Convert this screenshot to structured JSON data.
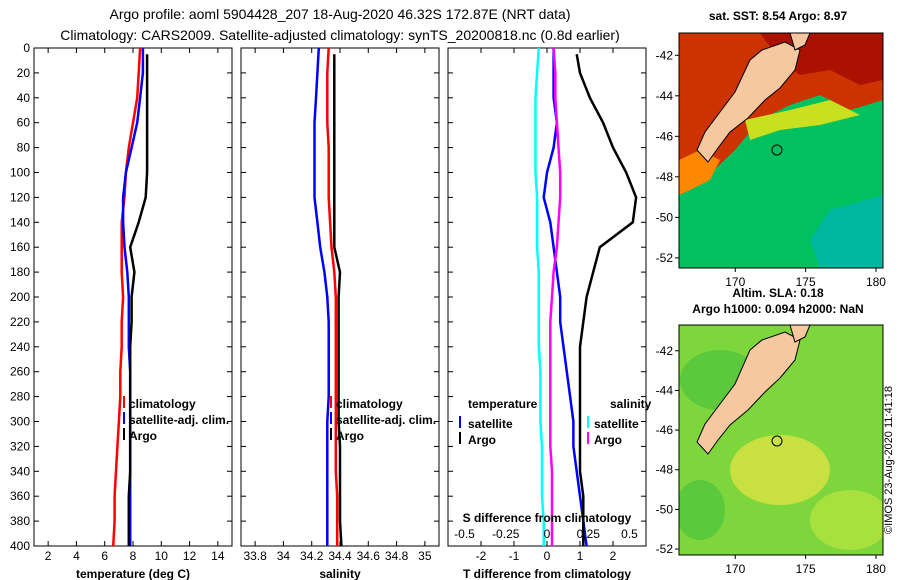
{
  "header": {
    "line1": "Argo profile: aoml 5904428_207 18-Aug-2020 46.32S 172.87E (NRT data)",
    "line2": "Climatology: CARS2009. Satellite-adjusted climatology: synTS_20200818.nc (0.8d earlier)"
  },
  "map_top": {
    "title": "sat. SST: 8.54 Argo: 8.97",
    "lon_ticks": [
      "170",
      "175",
      "180"
    ],
    "lat_ticks": [
      "-42",
      "-44",
      "-46",
      "-48",
      "-50",
      "-52"
    ],
    "profile_marker": "profile-location-circle"
  },
  "map_bottom": {
    "title1": "Altim. SLA: 0.18",
    "title2": "Argo h1000: 0.094 h2000: NaN",
    "lon_ticks": [
      "170",
      "175",
      "180"
    ],
    "lat_ticks": [
      "-42",
      "-44",
      "-46",
      "-48",
      "-50",
      "-52"
    ]
  },
  "watermark": "©IMOS 23-Aug-2020 11:41:18",
  "colors": {
    "climatology": "#ff0000",
    "satellite": "#0000ff",
    "argo": "#000000",
    "sat_salinity": "#00ffff",
    "salinity_diff": "#ff00ff"
  },
  "chart_data": [
    {
      "type": "line",
      "xlabel": "temperature (deg C)",
      "ylabel": "",
      "xlim": [
        1,
        15
      ],
      "ylim": [
        400,
        0
      ],
      "xticks": [
        "2",
        "4",
        "6",
        "8",
        "10",
        "12",
        "14"
      ],
      "yticks": [
        "0",
        "20",
        "40",
        "60",
        "80",
        "100",
        "120",
        "140",
        "160",
        "180",
        "200",
        "220",
        "240",
        "260",
        "280",
        "300",
        "320",
        "340",
        "360",
        "380",
        "400"
      ],
      "legend": [
        "climatology",
        "satellite-adj. clim.",
        "Argo"
      ],
      "series": [
        {
          "name": "climatology",
          "color": "#ff0000",
          "x": [
            8.5,
            8.4,
            8.3,
            8.0,
            7.7,
            7.5,
            7.4,
            7.2,
            7.2,
            7.2,
            7.3,
            7.2,
            7.2,
            7.1,
            7.1,
            7.0,
            6.9,
            6.8,
            6.7,
            6.7,
            6.6
          ],
          "y": [
            0,
            20,
            40,
            60,
            80,
            100,
            120,
            140,
            160,
            180,
            200,
            220,
            240,
            260,
            280,
            300,
            320,
            340,
            360,
            380,
            400
          ]
        },
        {
          "name": "satellite-adj. clim.",
          "color": "#0000ff",
          "x": [
            8.7,
            8.7,
            8.5,
            8.3,
            7.9,
            7.5,
            7.3,
            7.3,
            7.4,
            7.6,
            7.7,
            7.7,
            7.7,
            7.8,
            7.8,
            7.8,
            7.8,
            7.8,
            7.8,
            7.8,
            7.8
          ],
          "y": [
            0,
            20,
            40,
            60,
            80,
            100,
            120,
            140,
            160,
            180,
            200,
            220,
            240,
            260,
            280,
            300,
            320,
            340,
            360,
            380,
            400
          ]
        },
        {
          "name": "Argo",
          "color": "#000000",
          "x": [
            9.0,
            9.0,
            9.0,
            9.0,
            9.0,
            9.0,
            8.9,
            8.4,
            7.8,
            8.1,
            7.9,
            7.9,
            7.8,
            7.8,
            7.8,
            7.8,
            7.8,
            7.8,
            7.7,
            7.7,
            7.7
          ],
          "y": [
            5,
            20,
            40,
            60,
            80,
            100,
            120,
            140,
            160,
            180,
            200,
            220,
            240,
            260,
            280,
            300,
            320,
            340,
            360,
            380,
            400
          ]
        }
      ]
    },
    {
      "type": "line",
      "xlabel": "salinity",
      "ylabel": "",
      "xlim": [
        33.7,
        35.1
      ],
      "ylim": [
        400,
        0
      ],
      "xticks": [
        "33.8",
        "34",
        "34.2",
        "34.4",
        "34.6",
        "34.8",
        "35"
      ],
      "legend": [
        "climatology",
        "satellite-adj. clim.",
        "Argo"
      ],
      "series": [
        {
          "name": "climatology",
          "color": "#ff0000",
          "x": [
            34.32,
            34.31,
            34.31,
            34.31,
            34.32,
            34.32,
            34.32,
            34.33,
            34.34,
            34.36,
            34.37,
            34.37,
            34.37,
            34.37,
            34.37,
            34.37,
            34.37,
            34.37,
            34.38,
            34.38,
            34.38
          ],
          "y": [
            0,
            20,
            40,
            60,
            80,
            100,
            120,
            140,
            160,
            180,
            200,
            220,
            240,
            260,
            280,
            300,
            320,
            340,
            360,
            380,
            400
          ]
        },
        {
          "name": "satellite-adj. clim.",
          "color": "#0000ff",
          "x": [
            34.25,
            34.24,
            34.23,
            34.22,
            34.22,
            34.22,
            34.22,
            34.24,
            34.26,
            34.29,
            34.31,
            34.32,
            34.32,
            34.32,
            34.32,
            34.31,
            34.31,
            34.31,
            34.31,
            34.31,
            34.31
          ],
          "y": [
            0,
            20,
            40,
            60,
            80,
            100,
            120,
            140,
            160,
            180,
            200,
            220,
            240,
            260,
            280,
            300,
            320,
            340,
            360,
            380,
            400
          ]
        },
        {
          "name": "Argo",
          "color": "#000000",
          "x": [
            34.36,
            34.36,
            34.36,
            34.36,
            34.36,
            34.36,
            34.36,
            34.36,
            34.36,
            34.4,
            34.39,
            34.39,
            34.39,
            34.39,
            34.39,
            34.39,
            34.4,
            34.4,
            34.4,
            34.4,
            34.41
          ],
          "y": [
            5,
            20,
            40,
            60,
            80,
            100,
            120,
            140,
            160,
            180,
            200,
            220,
            240,
            260,
            280,
            300,
            320,
            340,
            360,
            380,
            400
          ]
        }
      ]
    },
    {
      "type": "line",
      "xlabel": "T difference from climatology",
      "xlim": [
        -3,
        3
      ],
      "ylim": [
        400,
        0
      ],
      "xticks": [
        "-2",
        "-1",
        "0",
        "1",
        "2"
      ],
      "top_axis_label": "S difference from climatology",
      "top_axis_ticks": [
        "-0.5",
        "-0.25",
        "0",
        "0.25",
        "0.5"
      ],
      "legend_left_title": "temperature",
      "legend_right_title": "salinity",
      "legend_left": [
        "satellite",
        "Argo"
      ],
      "legend_right": [
        "satellite",
        "Argo"
      ],
      "series": [
        {
          "name": "temperature satellite",
          "color": "#0000ff",
          "x": [
            0.2,
            0.2,
            0.2,
            0.3,
            0.2,
            0.0,
            -0.1,
            0.1,
            0.2,
            0.3,
            0.4,
            0.4,
            0.5,
            0.6,
            0.7,
            0.8,
            0.8,
            0.9,
            1.0,
            1.1,
            1.2
          ],
          "y": [
            0,
            20,
            40,
            60,
            80,
            100,
            120,
            140,
            160,
            180,
            200,
            220,
            240,
            260,
            280,
            300,
            320,
            340,
            360,
            380,
            400
          ]
        },
        {
          "name": "temperature Argo",
          "color": "#000000",
          "x": [
            0.9,
            1.0,
            1.3,
            1.7,
            2.0,
            2.4,
            2.7,
            2.6,
            1.6,
            1.4,
            1.2,
            1.1,
            1.0,
            1.0,
            1.0,
            1.0,
            1.0,
            1.0,
            1.1,
            1.1,
            1.1
          ],
          "y": [
            5,
            20,
            40,
            60,
            80,
            100,
            120,
            140,
            160,
            180,
            200,
            220,
            240,
            260,
            280,
            300,
            320,
            340,
            360,
            380,
            400
          ]
        },
        {
          "name": "salinity satellite",
          "color": "#00ffff",
          "x": [
            -0.05,
            -0.06,
            -0.07,
            -0.07,
            -0.07,
            -0.07,
            -0.06,
            -0.06,
            -0.06,
            -0.05,
            -0.05,
            -0.05,
            -0.05,
            -0.04,
            -0.04,
            -0.04,
            -0.03,
            -0.03,
            -0.03,
            -0.02,
            -0.02
          ],
          "y": [
            0,
            20,
            40,
            60,
            80,
            100,
            120,
            140,
            160,
            180,
            200,
            220,
            240,
            260,
            280,
            300,
            320,
            340,
            360,
            380,
            400
          ]
        },
        {
          "name": "salinity Argo",
          "color": "#ff00ff",
          "x": [
            0.04,
            0.05,
            0.05,
            0.06,
            0.07,
            0.08,
            0.08,
            0.07,
            0.06,
            0.04,
            0.03,
            0.02,
            0.02,
            0.02,
            0.02,
            0.02,
            0.02,
            0.03,
            0.03,
            0.03,
            0.03
          ],
          "y": [
            0,
            20,
            40,
            60,
            80,
            100,
            120,
            140,
            160,
            180,
            200,
            220,
            240,
            260,
            280,
            300,
            320,
            340,
            360,
            380,
            400
          ]
        }
      ]
    }
  ]
}
